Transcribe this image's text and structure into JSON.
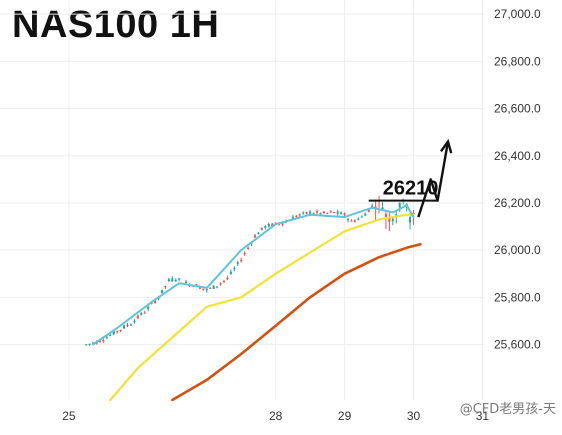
{
  "header": {
    "title": "NAS100 1H"
  },
  "watermark": "@CFD老男孩-天",
  "colors": {
    "background": "#ffffff",
    "grid": "#eeeeee",
    "up": "#26a69a",
    "down": "#ef5350",
    "ma_fast": "#5ec5d8",
    "ma_mid": "#f2e233",
    "ma_slow": "#d4500f",
    "annotation": "#111111",
    "axis_text": "#333333"
  },
  "chart_data": {
    "type": "candlestick",
    "title": "NAS100 1H",
    "x_ticks": [
      "25",
      "28",
      "29",
      "30",
      "31"
    ],
    "y_ticks": [
      "25,600.0",
      "25,800.0",
      "26,000.0",
      "26,200.0",
      "26,400.0",
      "26,600.0",
      "26,800.0",
      "27,000.0"
    ],
    "y_tick_values": [
      25600,
      25800,
      26000,
      26200,
      26400,
      26600,
      26800,
      27000
    ],
    "ylim": [
      25365,
      27060
    ],
    "xlim": [
      24.0,
      31.4
    ],
    "grid": true,
    "anchors": [
      [
        25.25,
        25600
      ],
      [
        25.4,
        25610
      ],
      [
        25.6,
        25640
      ],
      [
        25.9,
        25690
      ],
      [
        26.1,
        25740
      ],
      [
        26.3,
        25800
      ],
      [
        26.45,
        25870
      ],
      [
        26.55,
        25880
      ],
      [
        26.7,
        25860
      ],
      [
        26.85,
        25850
      ],
      [
        27.0,
        25830
      ],
      [
        27.15,
        25850
      ],
      [
        27.3,
        25880
      ],
      [
        27.5,
        25960
      ],
      [
        27.7,
        26060
      ],
      [
        27.85,
        26100
      ],
      [
        28.0,
        26110
      ],
      [
        28.15,
        26120
      ],
      [
        28.3,
        26145
      ],
      [
        28.5,
        26160
      ],
      [
        28.7,
        26155
      ],
      [
        28.85,
        26160
      ],
      [
        29.0,
        26150
      ],
      [
        29.1,
        26120
      ],
      [
        29.25,
        26140
      ],
      [
        29.35,
        26170
      ],
      [
        29.45,
        26200
      ],
      [
        29.55,
        26190
      ],
      [
        29.62,
        26130
      ],
      [
        29.7,
        26145
      ],
      [
        29.8,
        26180
      ],
      [
        29.88,
        26260
      ],
      [
        29.93,
        26120
      ],
      [
        30.0,
        26140
      ]
    ],
    "candle_count": 96,
    "ma_fast": {
      "x": [
        25.35,
        25.7,
        26.2,
        26.6,
        27.0,
        27.5,
        28.0,
        28.5,
        29.0,
        29.4,
        29.7,
        29.9,
        30.0
      ],
      "y": [
        25600,
        25670,
        25780,
        25860,
        25840,
        26000,
        26110,
        26150,
        26140,
        26180,
        26160,
        26190,
        26140
      ]
    },
    "ma_mid": {
      "x": [
        25.6,
        26.0,
        26.5,
        27.0,
        27.5,
        28.0,
        28.5,
        29.0,
        29.5,
        29.9,
        30.0
      ],
      "y": [
        25365,
        25500,
        25630,
        25760,
        25800,
        25900,
        25990,
        26080,
        26130,
        26150,
        26150
      ]
    },
    "ma_slow": {
      "x": [
        26.5,
        27.0,
        27.5,
        28.0,
        28.5,
        29.0,
        29.5,
        29.9,
        30.1
      ],
      "y": [
        25365,
        25450,
        25560,
        25680,
        25800,
        25900,
        25970,
        26010,
        26025
      ]
    },
    "annotations": {
      "level_label": "26210",
      "level_value": 26210,
      "level_x_range": [
        29.35,
        30.35
      ],
      "projection": {
        "x": [
          30.07,
          30.25,
          30.35,
          30.5
        ],
        "y": [
          26140,
          26300,
          26210,
          26460
        ]
      }
    }
  }
}
